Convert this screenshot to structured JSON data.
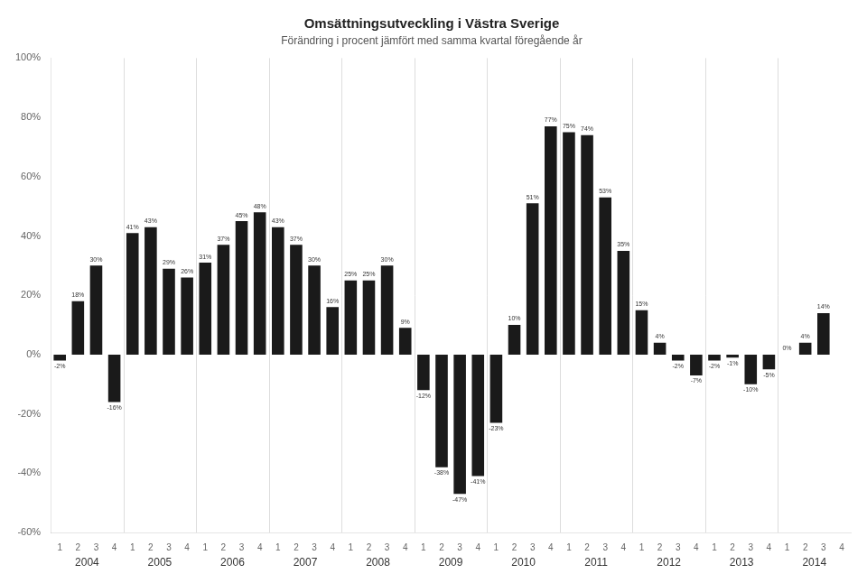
{
  "chart_data": {
    "type": "bar",
    "title": "Omsättningsutveckling i Västra Sverige",
    "subtitle": "Förändring i procent jämfört med samma kvartal föregående år",
    "categories": [
      "1",
      "2",
      "3",
      "4",
      "1",
      "2",
      "3",
      "4",
      "1",
      "2",
      "3",
      "4",
      "1",
      "2",
      "3",
      "4",
      "1",
      "2",
      "3",
      "4",
      "1",
      "2",
      "3",
      "4",
      "1",
      "2",
      "3",
      "4",
      "1",
      "2",
      "3",
      "4",
      "1",
      "2",
      "3",
      "4",
      "1",
      "2",
      "3",
      "4",
      "1",
      "2",
      "3",
      "4"
    ],
    "values": [
      -2,
      18,
      30,
      -16,
      41,
      43,
      29,
      26,
      31,
      37,
      45,
      48,
      43,
      37,
      30,
      16,
      25,
      25,
      30,
      9,
      -12,
      -38,
      -47,
      -41,
      -23,
      10,
      51,
      77,
      75,
      74,
      53,
      35,
      15,
      4,
      -2,
      -7,
      -2,
      -1,
      -10,
      -5,
      0,
      4,
      14,
      0
    ],
    "value_labels": [
      "-2%",
      "18%",
      "30%",
      "-16%",
      "41%",
      "43%",
      "29%",
      "26%",
      "31%",
      "37%",
      "45%",
      "48%",
      "43%",
      "37%",
      "30%",
      "16%",
      "25%",
      "25%",
      "30%",
      "9%",
      "-12%",
      "-38%",
      "-47%",
      "-41%",
      "-23%",
      "10%",
      "51%",
      "77%",
      "75%",
      "74%",
      "53%",
      "35%",
      "15%",
      "4%",
      "-2%",
      "-7%",
      "-2%",
      "-1%",
      "-10%",
      "-5%",
      "0%",
      "4%",
      "14%",
      null
    ],
    "color": "#1a1a1a",
    "ylim": [
      -60,
      100
    ],
    "yticks": [
      {
        "value": -60,
        "label": "-60%"
      },
      {
        "value": -40,
        "label": "-40%"
      },
      {
        "value": -20,
        "label": "-20%"
      },
      {
        "value": 0,
        "label": "0%"
      },
      {
        "value": 20,
        "label": "20%"
      },
      {
        "value": 40,
        "label": "40%"
      },
      {
        "value": 60,
        "label": "60%"
      },
      {
        "value": 80,
        "label": "80%"
      },
      {
        "value": 100,
        "label": "100%"
      }
    ],
    "grid": false,
    "data_labels": true,
    "annotations": [
      "2004",
      "2005",
      "2006",
      "2007",
      "2008",
      "2009",
      "2010",
      "2011",
      "2012",
      "2013",
      "2014"
    ]
  }
}
